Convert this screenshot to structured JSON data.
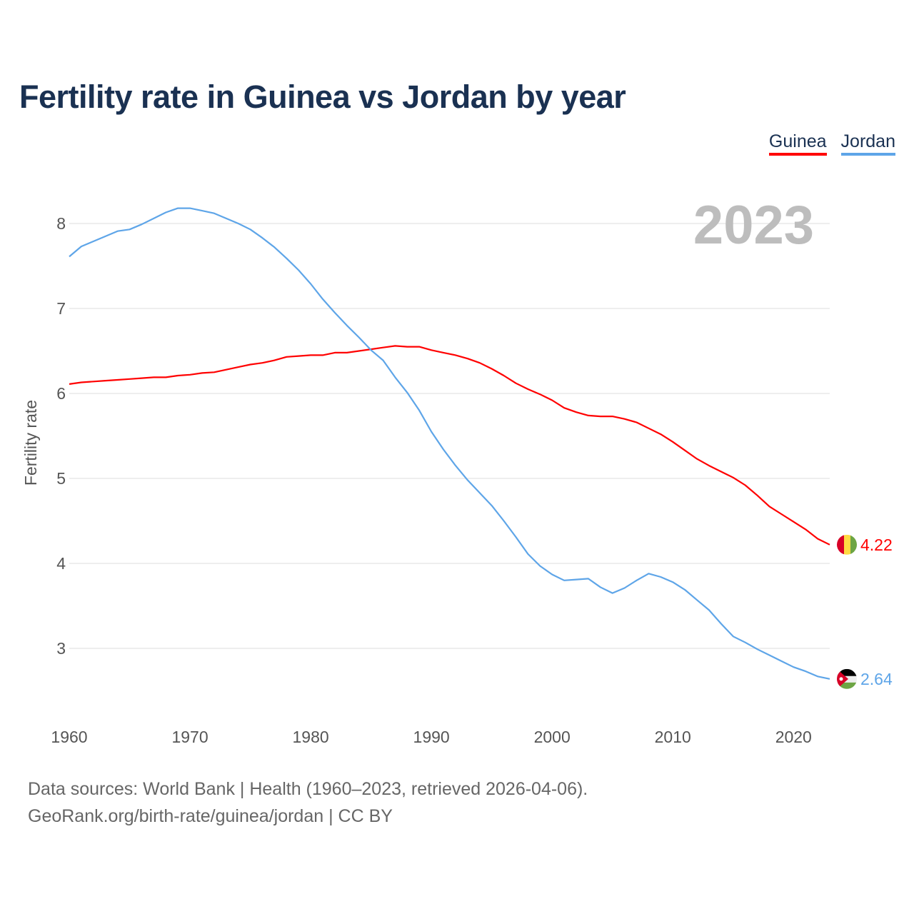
{
  "chart_data": {
    "type": "line",
    "title": "Fertility rate in Guinea vs Jordan by year",
    "xlabel": "",
    "ylabel": "Fertility rate",
    "xlim": [
      1960,
      2023
    ],
    "ylim": [
      2.5,
      8.3
    ],
    "x_ticks": [
      "1960",
      "1970",
      "1980",
      "1990",
      "2000",
      "2010",
      "2020"
    ],
    "y_ticks": [
      "3",
      "4",
      "5",
      "6",
      "7",
      "8"
    ],
    "grid": true,
    "legend_placement": "top-right",
    "year_label": "2023",
    "x": [
      1960,
      1961,
      1962,
      1963,
      1964,
      1965,
      1966,
      1967,
      1968,
      1969,
      1970,
      1971,
      1972,
      1973,
      1974,
      1975,
      1976,
      1977,
      1978,
      1979,
      1980,
      1981,
      1982,
      1983,
      1984,
      1985,
      1986,
      1987,
      1988,
      1989,
      1990,
      1991,
      1992,
      1993,
      1994,
      1995,
      1996,
      1997,
      1998,
      1999,
      2000,
      2001,
      2002,
      2003,
      2004,
      2005,
      2006,
      2007,
      2008,
      2009,
      2010,
      2011,
      2012,
      2013,
      2014,
      2015,
      2016,
      2017,
      2018,
      2019,
      2020,
      2021,
      2022,
      2023
    ],
    "series": [
      {
        "name": "Guinea",
        "color": "#ff0000",
        "end_label": "4.22",
        "values": [
          6.11,
          6.13,
          6.14,
          6.15,
          6.16,
          6.17,
          6.18,
          6.19,
          6.19,
          6.21,
          6.22,
          6.24,
          6.25,
          6.28,
          6.31,
          6.34,
          6.36,
          6.39,
          6.43,
          6.44,
          6.45,
          6.45,
          6.48,
          6.48,
          6.5,
          6.52,
          6.54,
          6.56,
          6.55,
          6.55,
          6.51,
          6.48,
          6.45,
          6.41,
          6.36,
          6.29,
          6.21,
          6.12,
          6.05,
          5.99,
          5.92,
          5.83,
          5.78,
          5.74,
          5.73,
          5.73,
          5.7,
          5.66,
          5.59,
          5.52,
          5.43,
          5.33,
          5.23,
          5.15,
          5.08,
          5.01,
          4.92,
          4.8,
          4.67,
          4.58,
          4.49,
          4.4,
          4.29,
          4.22
        ]
      },
      {
        "name": "Jordan",
        "color": "#5ea5e8",
        "end_label": "2.64",
        "values": [
          7.61,
          7.73,
          7.79,
          7.85,
          7.91,
          7.93,
          7.99,
          8.06,
          8.13,
          8.18,
          8.18,
          8.15,
          8.12,
          8.06,
          8.0,
          7.93,
          7.83,
          7.72,
          7.59,
          7.45,
          7.29,
          7.11,
          6.95,
          6.8,
          6.66,
          6.51,
          6.39,
          6.19,
          6.01,
          5.8,
          5.55,
          5.34,
          5.15,
          4.98,
          4.83,
          4.68,
          4.5,
          4.31,
          4.11,
          3.97,
          3.87,
          3.8,
          3.81,
          3.82,
          3.72,
          3.65,
          3.71,
          3.8,
          3.88,
          3.84,
          3.78,
          3.69,
          3.57,
          3.45,
          3.29,
          3.14,
          3.07,
          2.99,
          2.92,
          2.85,
          2.78,
          2.73,
          2.67,
          2.64
        ]
      }
    ]
  },
  "footer": {
    "line1": "Data sources: World Bank | Health (1960–2023, retrieved 2026-04-06).",
    "line2": "GeoRank.org/birth-rate/guinea/jordan | CC BY"
  }
}
